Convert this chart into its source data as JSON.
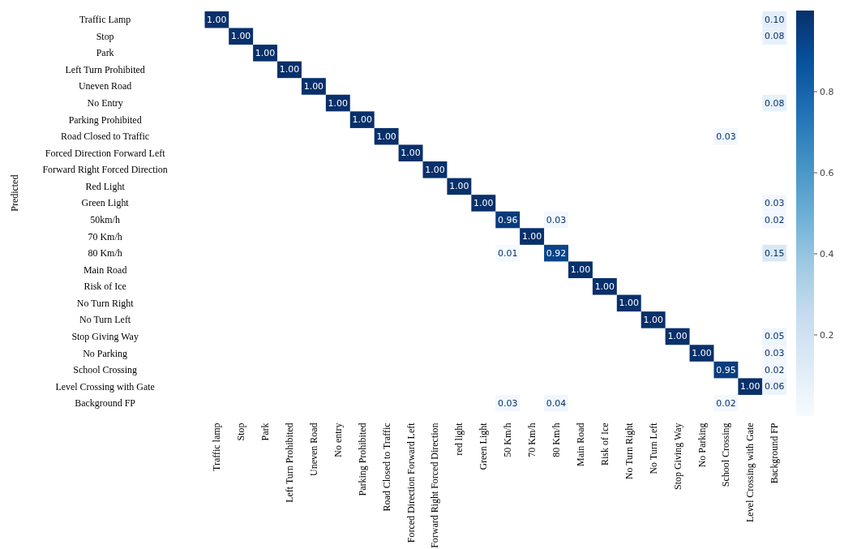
{
  "chart_data": {
    "type": "heatmap",
    "ylabel": "Predicted",
    "categories": [
      "Traffic lamp",
      "Stop",
      "Park",
      "Left  Turn  Prohibited",
      "Uneven Road",
      "No entry",
      "Parking Prohibited",
      "Road Closed to Traffic",
      "Forced Direction Forward Left",
      "Forward Right Forced Direction",
      "red  light",
      "Green  Light",
      "50  Km/h",
      "70  Km/h",
      "80  Km/h",
      "Main  Road",
      "Risk  of  Ice",
      "No  Turn  Right",
      "No  Turn  Left",
      "Stop  Giving  Way",
      "No  Parking",
      "School  Crossing",
      "Level Crossing with Gate",
      "Background FP"
    ],
    "y_categories": [
      "Traffic Lamp",
      "Stop",
      "Park",
      "Left Turn Prohibited",
      "Uneven Road",
      "No Entry",
      "Parking Prohibited",
      "Road Closed to Traffic",
      "Forced Direction Forward Left",
      "Forward Right Forced Direction",
      "Red Light",
      "Green Light",
      "50km/h",
      "70 Km/h",
      "80 Km/h",
      "Main Road",
      "Risk of Ice",
      "No Turn Right",
      "No Turn Left",
      "Stop Giving Way",
      "No Parking",
      "School Crossing",
      "Level Crossing with Gate",
      "Background FP"
    ],
    "cells": [
      [
        1.0,
        null,
        null,
        null,
        null,
        null,
        null,
        null,
        null,
        null,
        null,
        null,
        null,
        null,
        null,
        null,
        null,
        null,
        null,
        null,
        null,
        null,
        null,
        0.1
      ],
      [
        null,
        1.0,
        null,
        null,
        null,
        null,
        null,
        null,
        null,
        null,
        null,
        null,
        null,
        null,
        null,
        null,
        null,
        null,
        null,
        null,
        null,
        null,
        null,
        0.08
      ],
      [
        null,
        null,
        1.0,
        null,
        null,
        null,
        null,
        null,
        null,
        null,
        null,
        null,
        null,
        null,
        null,
        null,
        null,
        null,
        null,
        null,
        null,
        null,
        null,
        null
      ],
      [
        null,
        null,
        null,
        1.0,
        null,
        null,
        null,
        null,
        null,
        null,
        null,
        null,
        null,
        null,
        null,
        null,
        null,
        null,
        null,
        null,
        null,
        null,
        null,
        null
      ],
      [
        null,
        null,
        null,
        null,
        1.0,
        null,
        null,
        null,
        null,
        null,
        null,
        null,
        null,
        null,
        null,
        null,
        null,
        null,
        null,
        null,
        null,
        null,
        null,
        null
      ],
      [
        null,
        null,
        null,
        null,
        null,
        1.0,
        null,
        null,
        null,
        null,
        null,
        null,
        null,
        null,
        null,
        null,
        null,
        null,
        null,
        null,
        null,
        null,
        null,
        0.08
      ],
      [
        null,
        null,
        null,
        null,
        null,
        null,
        1.0,
        null,
        null,
        null,
        null,
        null,
        null,
        null,
        null,
        null,
        null,
        null,
        null,
        null,
        null,
        null,
        null,
        null
      ],
      [
        null,
        null,
        null,
        null,
        null,
        null,
        null,
        1.0,
        null,
        null,
        null,
        null,
        null,
        null,
        null,
        null,
        null,
        null,
        null,
        null,
        null,
        0.03,
        null,
        null
      ],
      [
        null,
        null,
        null,
        null,
        null,
        null,
        null,
        null,
        1.0,
        null,
        null,
        null,
        null,
        null,
        null,
        null,
        null,
        null,
        null,
        null,
        null,
        null,
        null,
        null
      ],
      [
        null,
        null,
        null,
        null,
        null,
        null,
        null,
        null,
        null,
        1.0,
        null,
        null,
        null,
        null,
        null,
        null,
        null,
        null,
        null,
        null,
        null,
        null,
        null,
        null
      ],
      [
        null,
        null,
        null,
        null,
        null,
        null,
        null,
        null,
        null,
        null,
        1.0,
        null,
        null,
        null,
        null,
        null,
        null,
        null,
        null,
        null,
        null,
        null,
        null,
        null
      ],
      [
        null,
        null,
        null,
        null,
        null,
        null,
        null,
        null,
        null,
        null,
        null,
        1.0,
        null,
        null,
        null,
        null,
        null,
        null,
        null,
        null,
        null,
        null,
        null,
        0.03
      ],
      [
        null,
        null,
        null,
        null,
        null,
        null,
        null,
        null,
        null,
        null,
        null,
        null,
        0.96,
        null,
        0.03,
        null,
        null,
        null,
        null,
        null,
        null,
        null,
        null,
        0.02
      ],
      [
        null,
        null,
        null,
        null,
        null,
        null,
        null,
        null,
        null,
        null,
        null,
        null,
        null,
        1.0,
        null,
        null,
        null,
        null,
        null,
        null,
        null,
        null,
        null,
        null
      ],
      [
        null,
        null,
        null,
        null,
        null,
        null,
        null,
        null,
        null,
        null,
        null,
        null,
        0.01,
        null,
        0.92,
        null,
        null,
        null,
        null,
        null,
        null,
        null,
        null,
        0.15
      ],
      [
        null,
        null,
        null,
        null,
        null,
        null,
        null,
        null,
        null,
        null,
        null,
        null,
        null,
        null,
        null,
        1.0,
        null,
        null,
        null,
        null,
        null,
        null,
        null,
        null
      ],
      [
        null,
        null,
        null,
        null,
        null,
        null,
        null,
        null,
        null,
        null,
        null,
        null,
        null,
        null,
        null,
        null,
        1.0,
        null,
        null,
        null,
        null,
        null,
        null,
        null
      ],
      [
        null,
        null,
        null,
        null,
        null,
        null,
        null,
        null,
        null,
        null,
        null,
        null,
        null,
        null,
        null,
        null,
        null,
        1.0,
        null,
        null,
        null,
        null,
        null,
        null
      ],
      [
        null,
        null,
        null,
        null,
        null,
        null,
        null,
        null,
        null,
        null,
        null,
        null,
        null,
        null,
        null,
        null,
        null,
        null,
        1.0,
        null,
        null,
        null,
        null,
        null
      ],
      [
        null,
        null,
        null,
        null,
        null,
        null,
        null,
        null,
        null,
        null,
        null,
        null,
        null,
        null,
        null,
        null,
        null,
        null,
        null,
        1.0,
        null,
        null,
        null,
        0.05
      ],
      [
        null,
        null,
        null,
        null,
        null,
        null,
        null,
        null,
        null,
        null,
        null,
        null,
        null,
        null,
        null,
        null,
        null,
        null,
        null,
        null,
        1.0,
        null,
        null,
        0.03
      ],
      [
        null,
        null,
        null,
        null,
        null,
        null,
        null,
        null,
        null,
        null,
        null,
        null,
        null,
        null,
        null,
        null,
        null,
        null,
        null,
        null,
        null,
        0.95,
        null,
        0.02
      ],
      [
        null,
        null,
        null,
        null,
        null,
        null,
        null,
        null,
        null,
        null,
        null,
        null,
        null,
        null,
        null,
        null,
        null,
        null,
        null,
        null,
        null,
        null,
        1.0,
        0.06
      ],
      [
        null,
        null,
        null,
        null,
        null,
        null,
        null,
        null,
        null,
        null,
        null,
        null,
        0.03,
        null,
        0.04,
        null,
        null,
        null,
        null,
        null,
        null,
        0.02,
        null,
        null
      ]
    ],
    "cell_labels": [
      [
        "1.00",
        null,
        null,
        null,
        null,
        null,
        null,
        null,
        null,
        null,
        null,
        null,
        null,
        null,
        null,
        null,
        null,
        null,
        null,
        null,
        null,
        null,
        null,
        "0.10"
      ],
      [
        null,
        "1.00",
        null,
        null,
        null,
        null,
        null,
        null,
        null,
        null,
        null,
        null,
        null,
        null,
        null,
        null,
        null,
        null,
        null,
        null,
        null,
        null,
        null,
        "0.08"
      ],
      [
        null,
        null,
        "1.00",
        null,
        null,
        null,
        null,
        null,
        null,
        null,
        null,
        null,
        null,
        null,
        null,
        null,
        null,
        null,
        null,
        null,
        null,
        null,
        null,
        null
      ],
      [
        null,
        null,
        null,
        "1.00",
        null,
        null,
        null,
        null,
        null,
        null,
        null,
        null,
        null,
        null,
        null,
        null,
        null,
        null,
        null,
        null,
        null,
        null,
        null,
        null
      ],
      [
        null,
        null,
        null,
        null,
        "1.00",
        null,
        null,
        null,
        null,
        null,
        null,
        null,
        null,
        null,
        null,
        null,
        null,
        null,
        null,
        null,
        null,
        null,
        null,
        null
      ],
      [
        null,
        null,
        null,
        null,
        null,
        "1.00",
        null,
        null,
        null,
        null,
        null,
        null,
        null,
        null,
        null,
        null,
        null,
        null,
        null,
        null,
        null,
        null,
        null,
        "0.08"
      ],
      [
        null,
        null,
        null,
        null,
        null,
        null,
        "1.00",
        null,
        null,
        null,
        null,
        null,
        null,
        null,
        null,
        null,
        null,
        null,
        null,
        null,
        null,
        null,
        null,
        null
      ],
      [
        null,
        null,
        null,
        null,
        null,
        null,
        null,
        "1.00",
        null,
        null,
        null,
        null,
        null,
        null,
        null,
        null,
        null,
        null,
        null,
        null,
        null,
        "0.03",
        null,
        null
      ],
      [
        null,
        null,
        null,
        null,
        null,
        null,
        null,
        null,
        "1.00",
        null,
        null,
        null,
        null,
        null,
        null,
        null,
        null,
        null,
        null,
        null,
        null,
        null,
        null,
        null
      ],
      [
        null,
        null,
        null,
        null,
        null,
        null,
        null,
        null,
        null,
        "1.00",
        null,
        null,
        null,
        null,
        null,
        null,
        null,
        null,
        null,
        null,
        null,
        null,
        null,
        null
      ],
      [
        null,
        null,
        null,
        null,
        null,
        null,
        null,
        null,
        null,
        null,
        "1.00",
        null,
        null,
        null,
        null,
        null,
        null,
        null,
        null,
        null,
        null,
        null,
        null,
        null
      ],
      [
        null,
        null,
        null,
        null,
        null,
        null,
        null,
        null,
        null,
        null,
        null,
        "1.00",
        null,
        null,
        null,
        null,
        null,
        null,
        null,
        null,
        null,
        null,
        null,
        "0.03"
      ],
      [
        null,
        null,
        null,
        null,
        null,
        null,
        null,
        null,
        null,
        null,
        null,
        null,
        "0.96",
        null,
        "0.03",
        null,
        null,
        null,
        null,
        null,
        null,
        null,
        null,
        "0.02"
      ],
      [
        null,
        null,
        null,
        null,
        null,
        null,
        null,
        null,
        null,
        null,
        null,
        null,
        null,
        "1.00",
        null,
        null,
        null,
        null,
        null,
        null,
        null,
        null,
        null,
        null
      ],
      [
        null,
        null,
        null,
        null,
        null,
        null,
        null,
        null,
        null,
        null,
        null,
        null,
        "0.01",
        null,
        "0.92",
        null,
        null,
        null,
        null,
        null,
        null,
        null,
        null,
        "0.15"
      ],
      [
        null,
        null,
        null,
        null,
        null,
        null,
        null,
        null,
        null,
        null,
        null,
        null,
        null,
        null,
        null,
        "1.00",
        null,
        null,
        null,
        null,
        null,
        null,
        null,
        null
      ],
      [
        null,
        null,
        null,
        null,
        null,
        null,
        null,
        null,
        null,
        null,
        null,
        null,
        null,
        null,
        null,
        null,
        "1.00",
        null,
        null,
        null,
        null,
        null,
        null,
        null
      ],
      [
        null,
        null,
        null,
        null,
        null,
        null,
        null,
        null,
        null,
        null,
        null,
        null,
        null,
        null,
        null,
        null,
        null,
        "1.00",
        null,
        null,
        null,
        null,
        null,
        null
      ],
      [
        null,
        null,
        null,
        null,
        null,
        null,
        null,
        null,
        null,
        null,
        null,
        null,
        null,
        null,
        null,
        null,
        null,
        null,
        "1.00",
        null,
        null,
        null,
        null,
        null
      ],
      [
        null,
        null,
        null,
        null,
        null,
        null,
        null,
        null,
        null,
        null,
        null,
        null,
        null,
        null,
        null,
        null,
        null,
        null,
        null,
        "1.00",
        null,
        null,
        null,
        "0.05"
      ],
      [
        null,
        null,
        null,
        null,
        null,
        null,
        null,
        null,
        null,
        null,
        null,
        null,
        null,
        null,
        null,
        null,
        null,
        null,
        null,
        null,
        "1.00",
        null,
        null,
        "0.03"
      ],
      [
        null,
        null,
        null,
        null,
        null,
        null,
        null,
        null,
        null,
        null,
        null,
        null,
        null,
        null,
        null,
        null,
        null,
        null,
        null,
        null,
        null,
        "0.95",
        null,
        "0.02"
      ],
      [
        null,
        null,
        null,
        null,
        null,
        null,
        null,
        null,
        null,
        null,
        null,
        null,
        null,
        null,
        null,
        null,
        null,
        null,
        null,
        null,
        null,
        null,
        "1.00",
        "0.06"
      ],
      [
        null,
        null,
        null,
        null,
        null,
        null,
        null,
        null,
        null,
        null,
        null,
        null,
        "0.03",
        null,
        "0.04",
        null,
        null,
        null,
        null,
        null,
        null,
        "0.02",
        null,
        null
      ]
    ],
    "clim": [
      0,
      1
    ],
    "cticks": [
      0.2,
      0.4,
      0.6,
      0.8
    ]
  }
}
